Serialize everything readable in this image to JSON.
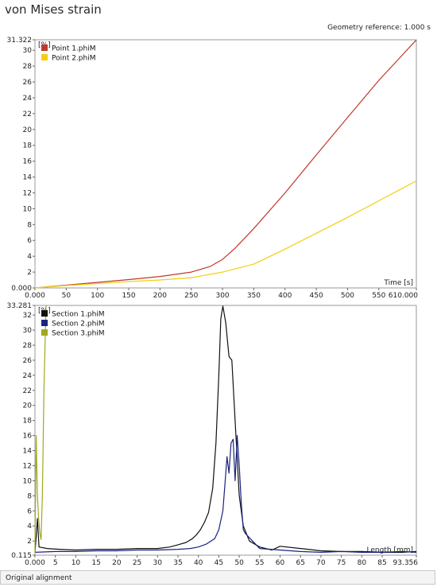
{
  "title": "von Mises strain",
  "geometry_reference": "Geometry reference: 1.000 s",
  "status_text": "Original alignment",
  "chart_data": [
    {
      "type": "line",
      "ylabel": "[%]",
      "xlabel": "Time [s]",
      "xlim": [
        0,
        610
      ],
      "ylim": [
        0,
        31.322
      ],
      "x_ticks": [
        "0.000",
        "50",
        "100",
        "150",
        "200",
        "250",
        "300",
        "350",
        "400",
        "450",
        "500",
        "550",
        "610.000"
      ],
      "x_tick_values": [
        0,
        50,
        100,
        150,
        200,
        250,
        300,
        350,
        400,
        450,
        500,
        550,
        610
      ],
      "y_ticks": [
        "0.000",
        "2",
        "4",
        "6",
        "8",
        "10",
        "12",
        "14",
        "16",
        "18",
        "20",
        "22",
        "24",
        "26",
        "28",
        "30",
        "31.322"
      ],
      "y_tick_values": [
        0,
        2,
        4,
        6,
        8,
        10,
        12,
        14,
        16,
        18,
        20,
        22,
        24,
        26,
        28,
        30,
        31.322
      ],
      "legend": "top-left",
      "series": [
        {
          "name": "Point 1.phiM",
          "color": "#c0392b",
          "x": [
            0,
            50,
            100,
            150,
            200,
            250,
            280,
            300,
            320,
            350,
            400,
            450,
            500,
            550,
            610
          ],
          "y": [
            0,
            0.35,
            0.7,
            1.05,
            1.45,
            2.0,
            2.7,
            3.6,
            5.0,
            7.5,
            12.0,
            16.8,
            21.5,
            26.2,
            31.3
          ]
        },
        {
          "name": "Point 2.phiM",
          "color": "#f2d00f",
          "x": [
            0,
            50,
            100,
            150,
            200,
            250,
            300,
            350,
            400,
            450,
            500,
            550,
            610
          ],
          "y": [
            0,
            0.3,
            0.55,
            0.8,
            1.0,
            1.3,
            2.0,
            3.0,
            4.9,
            6.9,
            8.9,
            11.0,
            13.5
          ]
        }
      ]
    },
    {
      "type": "line",
      "ylabel": "[%]",
      "xlabel": "Length [mm]",
      "xlim": [
        0,
        93.356
      ],
      "ylim": [
        0.115,
        33.281
      ],
      "x_ticks": [
        "0.000",
        "5",
        "10",
        "15",
        "20",
        "25",
        "30",
        "35",
        "40",
        "45",
        "50",
        "55",
        "60",
        "65",
        "70",
        "75",
        "80",
        "85",
        "93.356"
      ],
      "x_tick_values": [
        0,
        5,
        10,
        15,
        20,
        25,
        30,
        35,
        40,
        45,
        50,
        55,
        60,
        65,
        70,
        75,
        80,
        85,
        93.356
      ],
      "y_ticks": [
        "0.115",
        "2",
        "4",
        "6",
        "8",
        "10",
        "12",
        "14",
        "16",
        "18",
        "20",
        "22",
        "24",
        "26",
        "28",
        "30",
        "32",
        "33.281"
      ],
      "y_tick_values": [
        0.115,
        2,
        4,
        6,
        8,
        10,
        12,
        14,
        16,
        18,
        20,
        22,
        24,
        26,
        28,
        30,
        32,
        33.281
      ],
      "legend": "top-left",
      "series": [
        {
          "name": "Section 1.phiM",
          "color": "#111111",
          "x": [
            0,
            0.3,
            0.6,
            1,
            3,
            6,
            10,
            15,
            20,
            25,
            30,
            33,
            35,
            37,
            38.5,
            39.5,
            40.5,
            41.5,
            42.5,
            43.5,
            44.3,
            45,
            45.5,
            46,
            46.7,
            47.5,
            48.2,
            49,
            50,
            51,
            52.5,
            55,
            58,
            60,
            65,
            70,
            75,
            80,
            85,
            90,
            93.356
          ],
          "y": [
            0.5,
            2.5,
            5,
            1.2,
            1.0,
            0.9,
            0.8,
            0.9,
            0.9,
            1.0,
            1.0,
            1.2,
            1.5,
            1.8,
            2.3,
            2.8,
            3.5,
            4.5,
            5.8,
            9,
            15,
            24,
            31.5,
            33.2,
            31,
            26.5,
            26,
            18,
            8,
            4,
            2,
            1.2,
            0.8,
            1.3,
            1.0,
            0.7,
            0.6,
            0.6,
            0.5,
            0.5,
            0.6
          ]
        },
        {
          "name": "Section 2.phiM",
          "color": "#1a237e",
          "x": [
            0,
            5,
            10,
            15,
            20,
            25,
            30,
            35,
            38,
            40,
            42,
            44,
            45,
            46,
            46.5,
            47,
            47.5,
            48,
            48.5,
            49,
            49.5,
            50,
            50.5,
            51,
            51.5,
            55,
            60,
            65,
            70,
            75,
            80,
            85,
            90,
            93.356
          ],
          "y": [
            0.5,
            0.6,
            0.6,
            0.7,
            0.7,
            0.8,
            0.8,
            0.9,
            1.0,
            1.2,
            1.6,
            2.3,
            3.5,
            6,
            9.5,
            13.2,
            11,
            15,
            15.5,
            10,
            16,
            12,
            7,
            3.5,
            3.0,
            1.0,
            0.8,
            0.6,
            0.5,
            0.6,
            0.5,
            0.5,
            0.6,
            0.5
          ]
        },
        {
          "name": "Section 3.phiM",
          "color": "#a0a81e",
          "x": [
            0,
            0.3,
            0.6,
            0.9,
            1.2,
            1.5,
            1.8,
            2.2,
            2.7
          ],
          "y": [
            0.4,
            16,
            8,
            5,
            3,
            2.2,
            8,
            22,
            33.281
          ]
        }
      ]
    }
  ]
}
